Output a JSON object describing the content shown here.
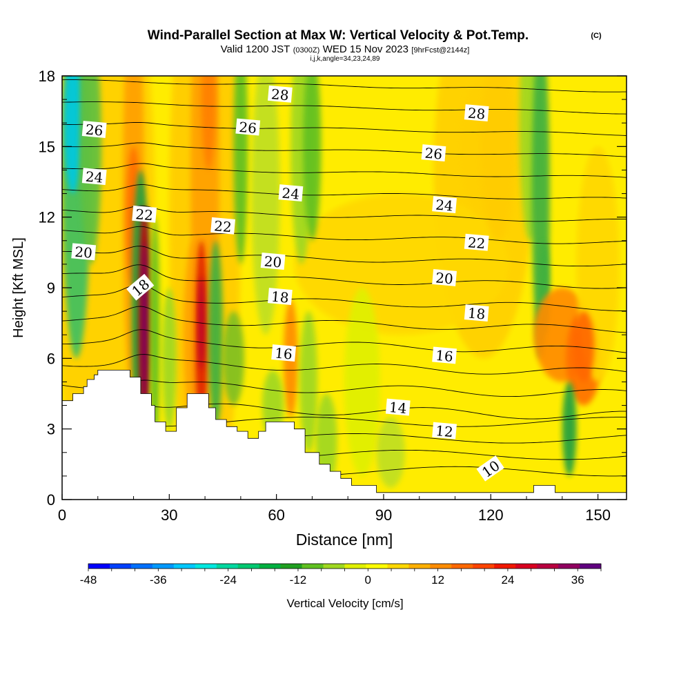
{
  "title": "Wind-Parallel Section at Max W: Vertical Velocity & Pot.Temp.",
  "copyright": "(C)",
  "subtitle": {
    "valid": "Valid 1200 JST",
    "zulu": "(0300Z)",
    "date": "WED 15 Nov 2023",
    "forecast": "[9hrFcst@2144z]"
  },
  "ijk_line": "i,j,k,angle=34,23,24,89",
  "chart_data": {
    "type": "heatmap",
    "xlabel": "Distance [nm]",
    "ylabel": "Height [Kft MSL]",
    "xlim": [
      0,
      158
    ],
    "ylim": [
      0,
      18
    ],
    "xticks": [
      0,
      30,
      60,
      90,
      120,
      150
    ],
    "yticks": [
      0,
      3,
      6,
      9,
      12,
      15,
      18
    ],
    "colorbar": {
      "label": "Vertical Velocity [cm/s]",
      "ticks": [
        -48,
        -36,
        -24,
        -12,
        0,
        12,
        24,
        36
      ],
      "range": [
        -48,
        40
      ],
      "colors": [
        "#0000ff",
        "#0040ff",
        "#0070ff",
        "#0099ff",
        "#00c8ff",
        "#00e8e0",
        "#00d8a0",
        "#00c870",
        "#00b040",
        "#20a020",
        "#60c020",
        "#a0d820",
        "#e0f000",
        "#ffff00",
        "#ffd800",
        "#ffb000",
        "#ff8c00",
        "#ff6800",
        "#ff4400",
        "#f01800",
        "#d80020",
        "#b80040",
        "#900060",
        "#600080"
      ]
    },
    "contours": {
      "variable": "Pot.Temp.",
      "levels": [
        10,
        11,
        12,
        13,
        14,
        15,
        16,
        17,
        18,
        19,
        20,
        21,
        22,
        23,
        24,
        25,
        26,
        27,
        28,
        29
      ],
      "labels": [
        {
          "text": "28",
          "x": 61,
          "y": 17.2
        },
        {
          "text": "28",
          "x": 116,
          "y": 16.4
        },
        {
          "text": "26",
          "x": 9,
          "y": 15.7
        },
        {
          "text": "26",
          "x": 52,
          "y": 15.8
        },
        {
          "text": "26",
          "x": 104,
          "y": 14.7
        },
        {
          "text": "24",
          "x": 9,
          "y": 13.7
        },
        {
          "text": "24",
          "x": 64,
          "y": 13.0
        },
        {
          "text": "24",
          "x": 107,
          "y": 12.5
        },
        {
          "text": "22",
          "x": 23,
          "y": 12.1
        },
        {
          "text": "22",
          "x": 45,
          "y": 11.6
        },
        {
          "text": "22",
          "x": 116,
          "y": 10.9
        },
        {
          "text": "20",
          "x": 6,
          "y": 10.5
        },
        {
          "text": "20",
          "x": 59,
          "y": 10.1
        },
        {
          "text": "20",
          "x": 107,
          "y": 9.4
        },
        {
          "text": "18",
          "x": 22,
          "y": 9.0
        },
        {
          "text": "18",
          "x": 61,
          "y": 8.6
        },
        {
          "text": "18",
          "x": 116,
          "y": 7.9
        },
        {
          "text": "16",
          "x": 62,
          "y": 6.2
        },
        {
          "text": "16",
          "x": 107,
          "y": 6.1
        },
        {
          "text": "14",
          "x": 94,
          "y": 3.9
        },
        {
          "text": "12",
          "x": 107,
          "y": 2.9
        },
        {
          "text": "10",
          "x": 120,
          "y": 1.3
        }
      ]
    },
    "terrain": [
      [
        0,
        4.2
      ],
      [
        3,
        4.2
      ],
      [
        3,
        4.5
      ],
      [
        6,
        4.5
      ],
      [
        6,
        4.8
      ],
      [
        7,
        4.8
      ],
      [
        7,
        5.1
      ],
      [
        9,
        5.1
      ],
      [
        9,
        5.3
      ],
      [
        10,
        5.3
      ],
      [
        10,
        5.5
      ],
      [
        19,
        5.5
      ],
      [
        19,
        5.2
      ],
      [
        22,
        5.2
      ],
      [
        22,
        4.5
      ],
      [
        25,
        4.5
      ],
      [
        25,
        4.0
      ],
      [
        26,
        4.0
      ],
      [
        26,
        3.3
      ],
      [
        29,
        3.3
      ],
      [
        29,
        2.9
      ],
      [
        32,
        2.9
      ],
      [
        32,
        3.9
      ],
      [
        35,
        3.9
      ],
      [
        35,
        4.5
      ],
      [
        41,
        4.5
      ],
      [
        41,
        3.9
      ],
      [
        43,
        3.9
      ],
      [
        43,
        3.4
      ],
      [
        46,
        3.4
      ],
      [
        46,
        3.1
      ],
      [
        49,
        3.1
      ],
      [
        49,
        2.9
      ],
      [
        52,
        2.9
      ],
      [
        52,
        2.6
      ],
      [
        55,
        2.6
      ],
      [
        55,
        2.9
      ],
      [
        57,
        2.9
      ],
      [
        57,
        3.3
      ],
      [
        65,
        3.3
      ],
      [
        65,
        3.0
      ],
      [
        68,
        3.0
      ],
      [
        68,
        2.0
      ],
      [
        72,
        2.0
      ],
      [
        72,
        1.5
      ],
      [
        75,
        1.5
      ],
      [
        75,
        1.2
      ],
      [
        78,
        1.2
      ],
      [
        78,
        0.9
      ],
      [
        81,
        0.9
      ],
      [
        81,
        0.6
      ],
      [
        88,
        0.6
      ],
      [
        88,
        0.3
      ],
      [
        132,
        0.3
      ],
      [
        132,
        0.6
      ],
      [
        138,
        0.6
      ],
      [
        138,
        0.3
      ],
      [
        158,
        0.3
      ]
    ]
  }
}
